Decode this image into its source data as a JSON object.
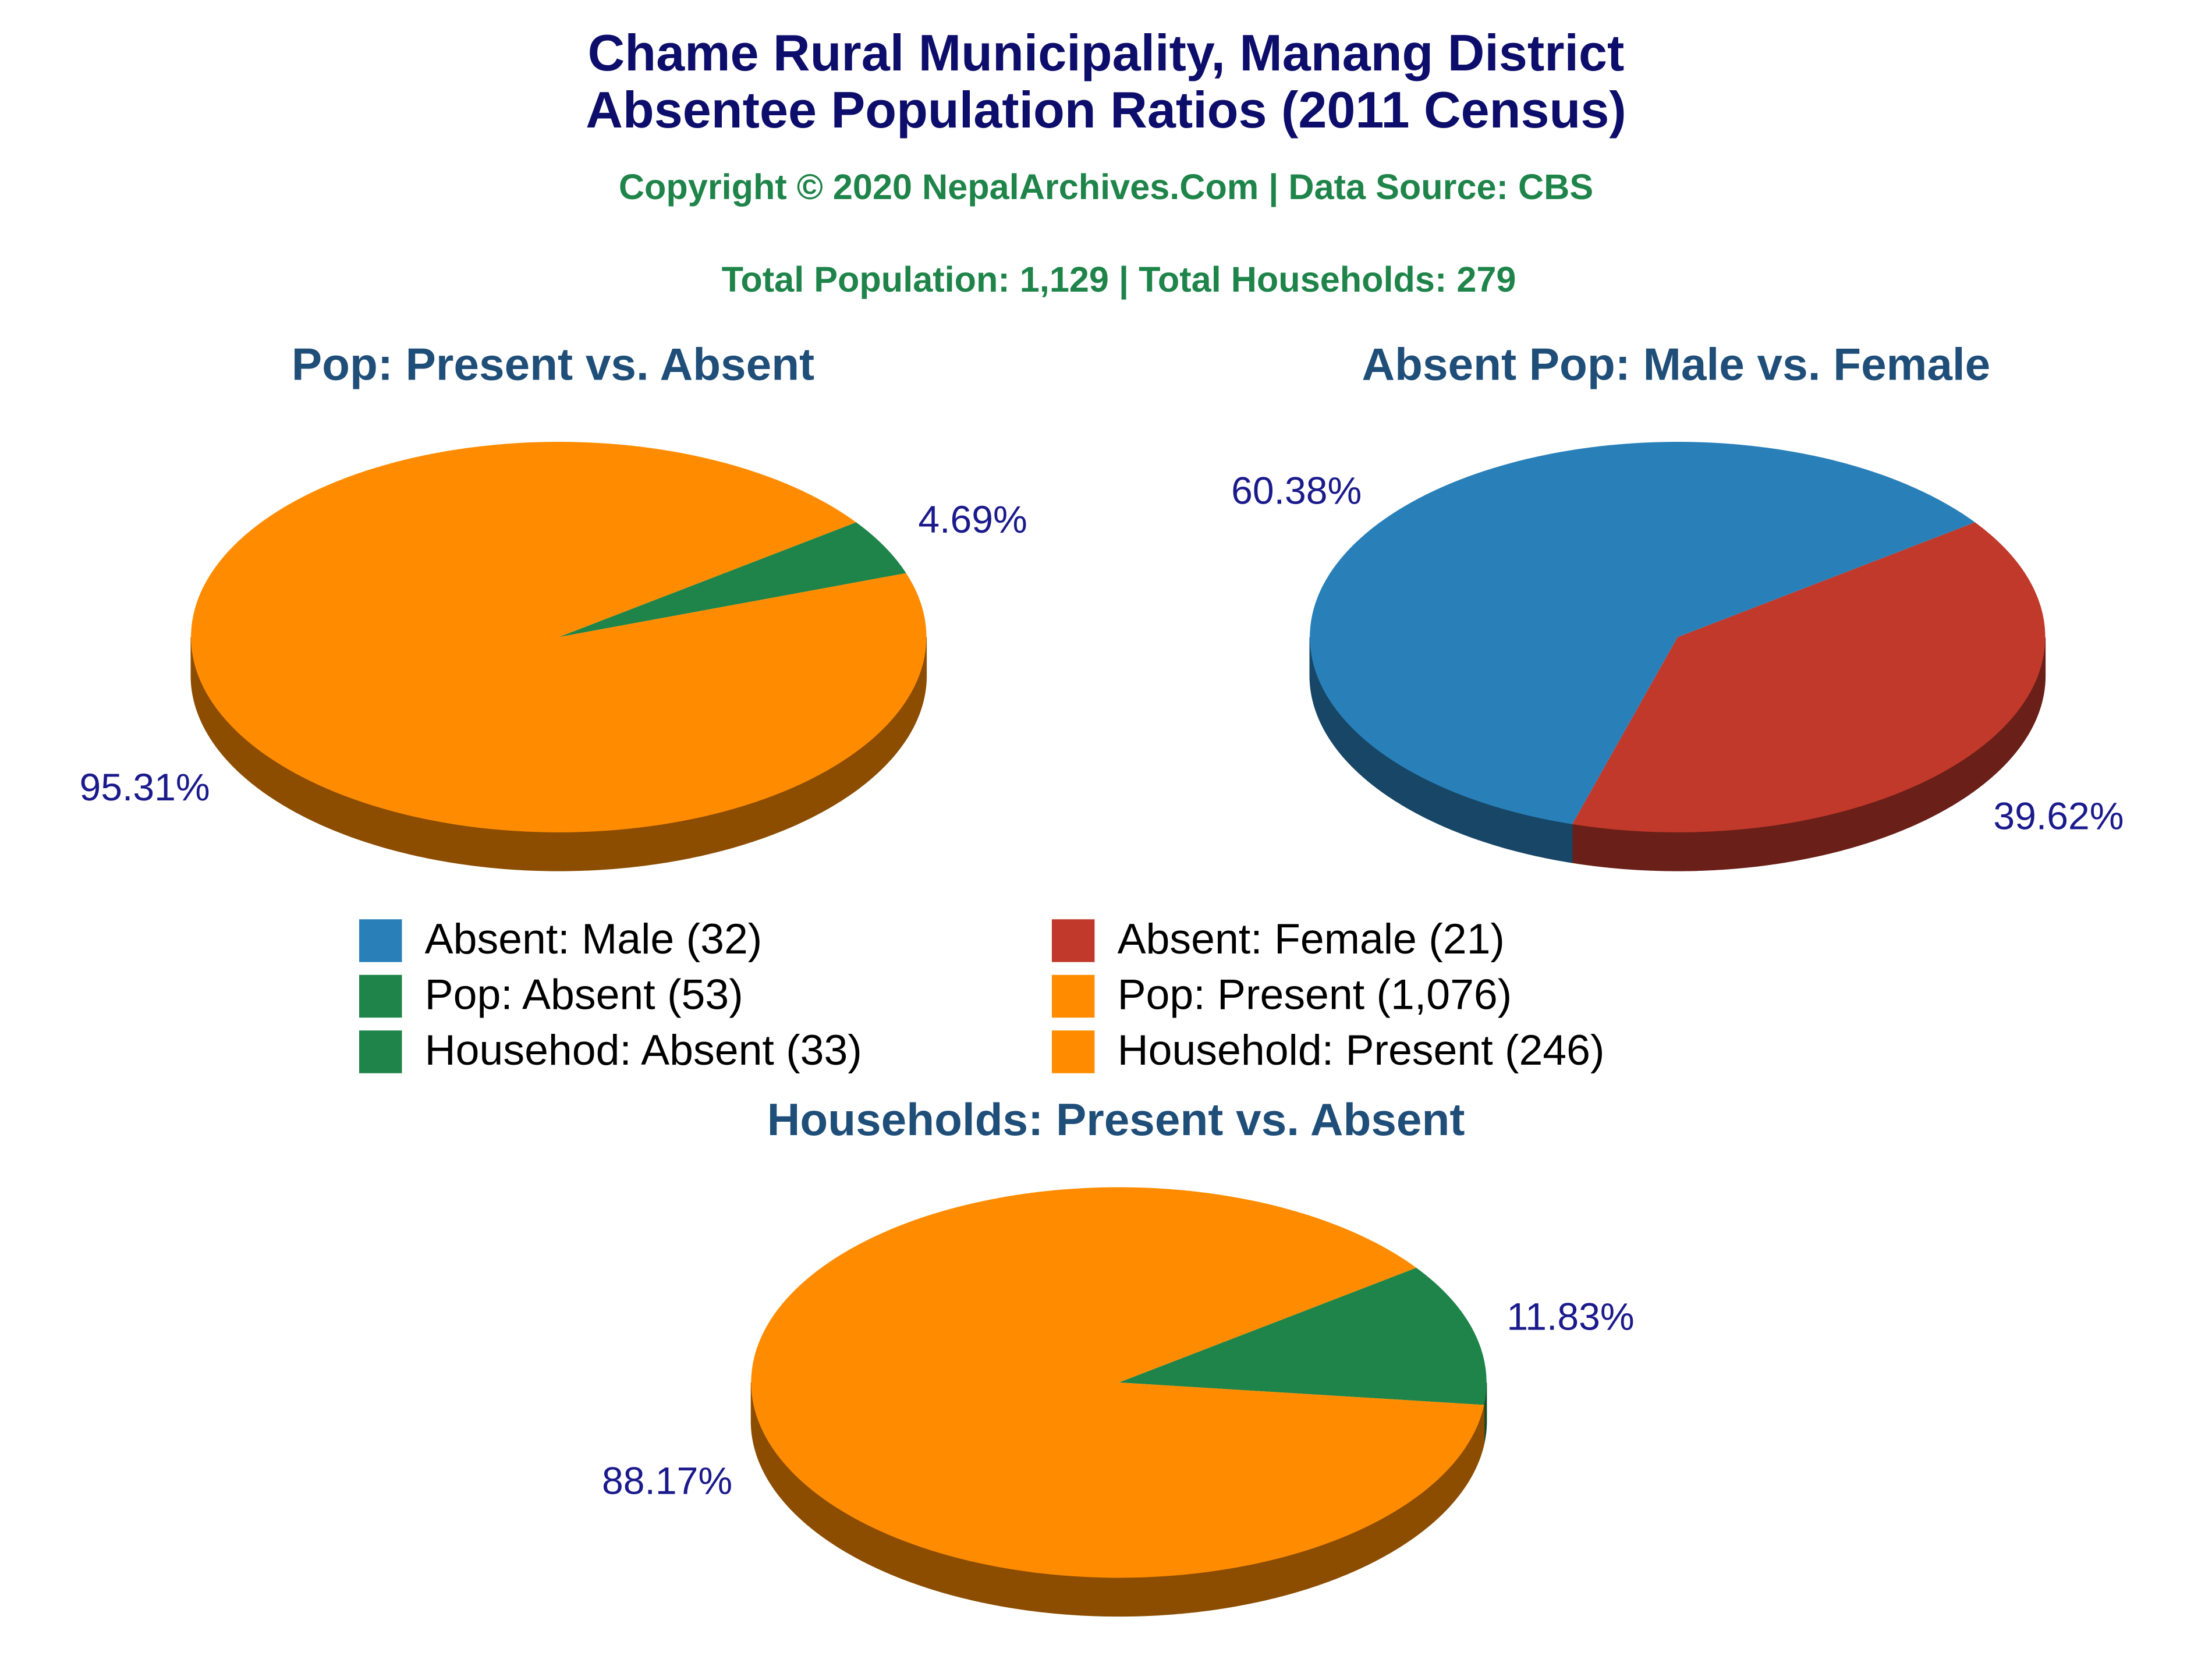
{
  "header": {
    "title": [
      "Chame Rural Municipality, Manang District",
      "Absentee Population Ratios (2011 Census)"
    ],
    "copyright": "Copyright © 2020 NepalArchives.Com | Data Source: CBS",
    "totals": "Total Population: 1,129 | Total Households: 279"
  },
  "chart_data": [
    {
      "type": "pie",
      "title": "Pop: Present vs. Absent",
      "categories": [
        "Pop: Absent (53)",
        "Pop: Present (1,076)"
      ],
      "values": [
        4.69,
        95.31
      ],
      "value_labels": [
        "4.69%",
        "95.31%"
      ],
      "colors": [
        "#1e8449",
        "#ff8c00"
      ]
    },
    {
      "type": "pie",
      "title": "Absent Pop: Male vs. Female",
      "categories": [
        "Absent: Female (21)",
        "Absent: Male (32)"
      ],
      "values": [
        39.62,
        60.38
      ],
      "value_labels": [
        "39.62%",
        "60.38%"
      ],
      "colors": [
        "#c0392b",
        "#2980b9"
      ]
    },
    {
      "type": "pie",
      "title": "Households: Present vs. Absent",
      "categories": [
        "Househod: Absent (33)",
        "Household: Present (246)"
      ],
      "values": [
        11.83,
        88.17
      ],
      "value_labels": [
        "11.83%",
        "88.17%"
      ],
      "colors": [
        "#1e8449",
        "#ff8c00"
      ]
    }
  ]
}
